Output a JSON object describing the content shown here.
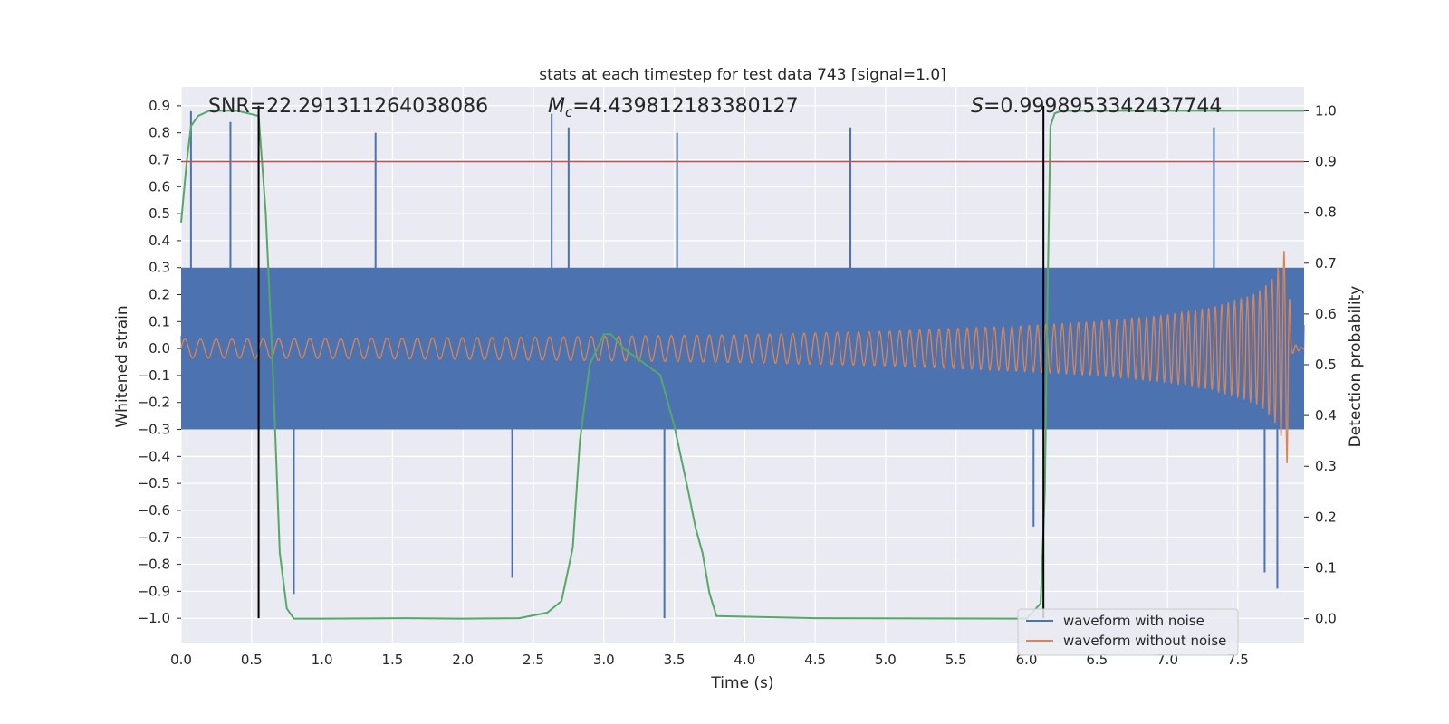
{
  "chart_data": {
    "type": "line",
    "title": "stats at each timestep for test data 743 [signal=1.0]",
    "xlabel": "Time (s)",
    "ylabel_left": "Whitened strain",
    "ylabel_right": "Detection probability",
    "xlim": [
      0.0,
      7.97
    ],
    "ylim_left": [
      -1.09,
      0.97
    ],
    "ylim_right": [
      -0.047,
      1.047
    ],
    "x_ticks": [
      "0.0",
      "0.5",
      "1.0",
      "1.5",
      "2.0",
      "2.5",
      "3.0",
      "3.5",
      "4.0",
      "4.5",
      "5.0",
      "5.5",
      "6.0",
      "6.5",
      "7.0",
      "7.5"
    ],
    "y_left_ticks": [
      "0.9",
      "0.8",
      "0.7",
      "0.6",
      "0.5",
      "0.4",
      "0.3",
      "0.2",
      "0.1",
      "0.0",
      "−0.1",
      "−0.2",
      "−0.3",
      "−0.4",
      "−0.5",
      "−0.6",
      "−0.7",
      "−0.8",
      "−0.9",
      "−1.0"
    ],
    "y_right_ticks": [
      "1.0",
      "0.9",
      "0.8",
      "0.7",
      "0.6",
      "0.5",
      "0.4",
      "0.3",
      "0.2",
      "0.1",
      "0.0"
    ],
    "grid": true,
    "legend_position": "lower-right",
    "annotations": {
      "snr_label": "SNR=22.291311264038086",
      "mc_symbol": "M",
      "mc_sub": "c",
      "mc_value": "=4.439812183380127",
      "s_symbol": "S",
      "s_value": "=0.9998953342437744"
    },
    "threshold": {
      "axis": "right",
      "value": 0.9,
      "color": "#c44e52"
    },
    "markers": [
      {
        "x": 0.55,
        "y_top": 0.9,
        "y_bottom": -1.0
      },
      {
        "x": 6.12,
        "y_top": 0.9,
        "y_bottom": -1.0
      }
    ],
    "series": [
      {
        "name": "waveform with noise",
        "color": "#4c72b0",
        "axis": "left",
        "description": "whitened strain with noise, envelope approx",
        "envelope_x": [
          0.0,
          8.0
        ],
        "envelope_typical": [
          0.3,
          -0.3
        ],
        "extreme_x": [
          0.07,
          0.35,
          0.55,
          0.8,
          1.38,
          2.35,
          2.63,
          2.75,
          3.43,
          3.52,
          4.75,
          6.05,
          7.33,
          7.69,
          7.78
        ],
        "extreme_y": [
          0.88,
          0.84,
          -0.18,
          -0.91,
          0.8,
          -0.85,
          0.87,
          0.82,
          -1.0,
          0.8,
          0.82,
          -0.66,
          0.82,
          -0.83,
          -0.89
        ]
      },
      {
        "name": "waveform without noise",
        "color": "#dd8452",
        "axis": "left",
        "description": "chirp waveform, amplitude grows until merger near 7.85 s",
        "amplitude_x": [
          0.0,
          1.0,
          2.0,
          3.0,
          4.0,
          5.0,
          6.0,
          6.5,
          7.0,
          7.3,
          7.5,
          7.65,
          7.75,
          7.82,
          7.85,
          7.88,
          7.97
        ],
        "amplitude_y": [
          0.035,
          0.037,
          0.04,
          0.045,
          0.052,
          0.064,
          0.085,
          0.1,
          0.125,
          0.15,
          0.18,
          0.21,
          0.26,
          0.34,
          0.43,
          0.02,
          0.0
        ],
        "cycles_per_second": [
          9,
          24
        ]
      },
      {
        "name": "",
        "color": "#55a868",
        "axis": "right",
        "description": "detection probability over time",
        "x": [
          0.0,
          0.04,
          0.07,
          0.12,
          0.2,
          0.4,
          0.55,
          0.6,
          0.65,
          0.7,
          0.75,
          0.8,
          1.0,
          1.6,
          2.0,
          2.4,
          2.6,
          2.7,
          2.78,
          2.83,
          2.9,
          3.0,
          3.05,
          3.15,
          3.3,
          3.4,
          3.5,
          3.6,
          3.65,
          3.7,
          3.75,
          3.8,
          4.5,
          6.0,
          6.1,
          6.13,
          6.15,
          6.17,
          6.2,
          6.25,
          7.0,
          7.97
        ],
        "y": [
          0.78,
          0.9,
          0.97,
          0.99,
          1.0,
          1.0,
          0.99,
          0.8,
          0.5,
          0.13,
          0.02,
          0.0,
          0.0,
          0.001,
          0.0,
          0.001,
          0.012,
          0.035,
          0.14,
          0.35,
          0.5,
          0.56,
          0.56,
          0.53,
          0.5,
          0.48,
          0.38,
          0.25,
          0.18,
          0.13,
          0.05,
          0.005,
          0.001,
          0.0,
          0.03,
          0.25,
          0.65,
          0.97,
          0.995,
          1.0,
          1.0,
          1.0
        ]
      }
    ]
  }
}
